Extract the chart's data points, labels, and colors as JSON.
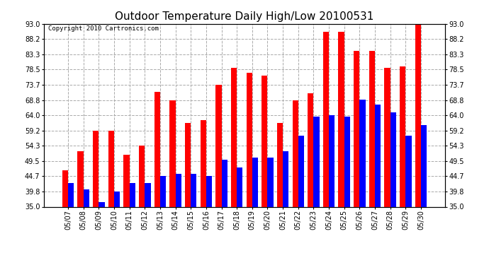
{
  "title": "Outdoor Temperature Daily High/Low 20100531",
  "copyright": "Copyright 2010 Cartronics.com",
  "dates": [
    "05/07",
    "05/08",
    "05/09",
    "05/10",
    "05/11",
    "05/12",
    "05/13",
    "05/14",
    "05/15",
    "05/16",
    "05/17",
    "05/18",
    "05/19",
    "05/20",
    "05/21",
    "05/22",
    "05/23",
    "05/24",
    "05/25",
    "05/26",
    "05/27",
    "05/28",
    "05/29",
    "05/30"
  ],
  "highs": [
    46.5,
    52.5,
    59.2,
    59.2,
    51.5,
    54.3,
    71.5,
    68.8,
    61.5,
    62.5,
    73.7,
    79.0,
    77.5,
    76.5,
    61.5,
    68.8,
    71.0,
    90.5,
    90.5,
    84.5,
    84.5,
    79.0,
    79.5,
    93.0
  ],
  "lows": [
    42.5,
    40.5,
    36.5,
    39.8,
    42.5,
    42.5,
    44.7,
    45.5,
    45.5,
    44.7,
    50.0,
    47.5,
    50.5,
    50.5,
    52.5,
    57.5,
    63.5,
    64.0,
    63.5,
    69.0,
    67.5,
    65.0,
    57.5,
    61.0
  ],
  "high_color": "#ff0000",
  "low_color": "#0000ff",
  "bg_color": "#ffffff",
  "grid_color": "#aaaaaa",
  "ylim": [
    35.0,
    93.0
  ],
  "yticks": [
    35.0,
    39.8,
    44.7,
    49.5,
    54.3,
    59.2,
    64.0,
    68.8,
    73.7,
    78.5,
    83.3,
    88.2,
    93.0
  ],
  "bar_width": 0.38,
  "title_fontsize": 11,
  "tick_fontsize": 7,
  "copyright_fontsize": 6.5
}
